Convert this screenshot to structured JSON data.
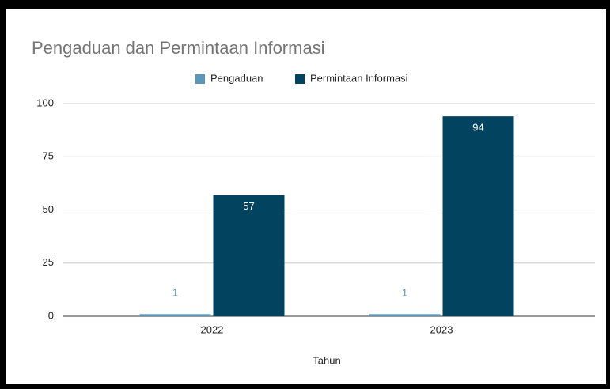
{
  "chart_data": {
    "type": "bar",
    "title": "Pengaduan dan Permintaan Informasi",
    "x_label": "Tahun",
    "categories": [
      "2022",
      "2023"
    ],
    "series": [
      {
        "name": "Pengaduan",
        "color": "#5b97ba",
        "values": [
          1,
          1
        ]
      },
      {
        "name": "Permintaan Informasi",
        "color": "#02435f",
        "values": [
          57,
          94
        ]
      }
    ],
    "ylim": [
      0,
      100
    ],
    "yticks": [
      0,
      25,
      50,
      75,
      100
    ],
    "grid": true,
    "legend": "top"
  }
}
